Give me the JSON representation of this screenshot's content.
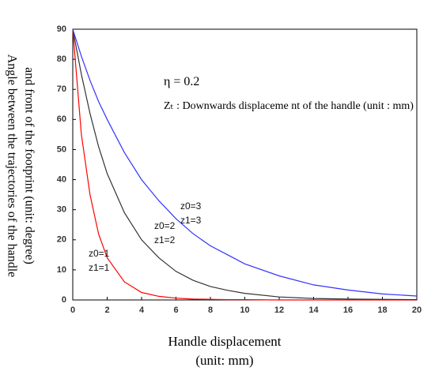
{
  "chart_data": {
    "type": "line",
    "y_label_lines": [
      "Angle between the trajectories of the handle",
      "and front of the footprint (unit: degree)"
    ],
    "x_label_lines": [
      "Handle displacement",
      "(unit: mm)"
    ],
    "annotations": [
      "η = 0.2",
      "Zₜ : Downwards displaceme nt of the handle (unit : mm)"
    ],
    "x": [
      0,
      0.5,
      1,
      1.5,
      2,
      3,
      4,
      5,
      6,
      7,
      8,
      9,
      10,
      12,
      14,
      16,
      18,
      20
    ],
    "series": [
      {
        "labels": [
          "z0=1",
          "z1=1"
        ],
        "color": "#ff0000",
        "values": [
          90,
          55,
          35,
          22,
          14,
          6,
          2.5,
          1.2,
          0.6,
          0.3,
          0.2,
          0.1,
          0.1,
          0,
          0,
          0,
          0,
          0
        ]
      },
      {
        "labels": [
          "z0=2",
          "z1=2"
        ],
        "color": "#333333",
        "values": [
          90,
          75,
          62,
          51,
          42,
          29,
          20,
          14,
          9.5,
          6.5,
          4.5,
          3.2,
          2.2,
          1,
          0.5,
          0.3,
          0.2,
          0.1
        ]
      },
      {
        "labels": [
          "z0=3",
          "z1=3"
        ],
        "color": "#3333ff",
        "values": [
          90,
          81,
          73,
          66,
          60,
          49,
          40,
          33,
          27,
          22,
          18,
          15,
          12,
          8,
          5,
          3.3,
          2,
          1.3
        ]
      }
    ],
    "xlim": [
      0,
      20
    ],
    "xticks": [
      0,
      2,
      4,
      6,
      8,
      10,
      12,
      14,
      16,
      18,
      20
    ],
    "ylim": [
      0,
      90
    ],
    "yticks": [
      0,
      10,
      20,
      30,
      40,
      50,
      60,
      70,
      80,
      90
    ]
  }
}
